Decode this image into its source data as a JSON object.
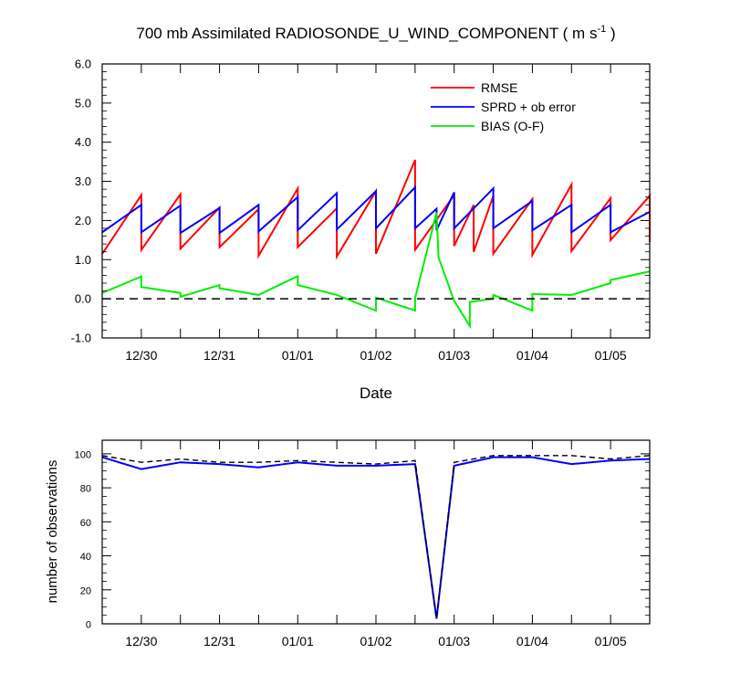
{
  "chart_data": [
    {
      "type": "line",
      "title": "700 mb Assimilated RADIOSONDE_U_WIND_COMPONENT ( m s",
      "title_sup": "-1",
      "title_end": " )",
      "xlabel": "Date",
      "ylabel": "",
      "ylim": [
        -1.0,
        6.0
      ],
      "xlim": [
        0,
        14
      ],
      "yticks": [
        -1.0,
        0.0,
        1.0,
        2.0,
        3.0,
        4.0,
        5.0,
        6.0
      ],
      "ytick_labels": [
        "-1.0",
        "0.0",
        "1.0",
        "2.0",
        "3.0",
        "4.0",
        "5.0",
        "6.0"
      ],
      "xticks": [
        1,
        3,
        5,
        7,
        9,
        11,
        13
      ],
      "xtick_labels": [
        "12/30",
        "12/31",
        "01/01",
        "01/02",
        "01/03",
        "01/04",
        "01/05"
      ],
      "grid": false,
      "zero_line": "dashed",
      "legend_position": "top-right",
      "colors": {
        "rmse": "#ff0000",
        "sprd": "#0000ff",
        "bias": "#00ee00"
      },
      "series": [
        {
          "name": "RMSE",
          "color": "#ff0000",
          "x": [
            0,
            1,
            1,
            2,
            2,
            3,
            3,
            4,
            4,
            5,
            5,
            6,
            6,
            7,
            7,
            8,
            8,
            9,
            9,
            9.5,
            9.5,
            10,
            10,
            11,
            11,
            12,
            12,
            13,
            13,
            14,
            14
          ],
          "y": [
            1.15,
            2.65,
            1.25,
            2.67,
            1.28,
            2.33,
            1.32,
            2.29,
            1.1,
            2.82,
            1.32,
            2.31,
            1.08,
            2.75,
            1.15,
            3.55,
            1.25,
            2.65,
            1.35,
            2.4,
            1.2,
            2.63,
            1.15,
            2.55,
            1.12,
            2.92,
            1.22,
            2.57,
            1.5,
            2.63,
            1.45
          ]
        },
        {
          "name": "SPRD + ob error",
          "color": "#0000ff",
          "x": [
            0,
            1,
            1,
            2,
            2,
            3,
            3,
            4,
            4,
            5,
            5,
            6,
            6,
            7,
            7,
            8,
            8,
            8.55,
            8.55,
            9,
            9,
            10,
            10,
            11,
            11,
            12,
            12,
            13,
            13,
            14
          ],
          "y": [
            1.7,
            2.4,
            1.7,
            2.38,
            1.68,
            2.32,
            1.68,
            2.4,
            1.72,
            2.6,
            1.75,
            2.7,
            1.77,
            2.75,
            1.8,
            2.85,
            1.8,
            2.3,
            1.75,
            2.72,
            1.8,
            2.82,
            1.8,
            2.5,
            1.75,
            2.4,
            1.7,
            2.4,
            1.7,
            2.22
          ]
        },
        {
          "name": "BIAS (O-F)",
          "color": "#00ee00",
          "x": [
            0,
            1,
            1,
            2,
            2,
            3,
            3,
            4,
            4,
            5,
            5,
            6,
            7,
            7,
            8,
            8,
            8.55,
            8.6,
            9,
            9.4,
            9.4,
            10,
            10,
            11,
            11,
            12,
            12,
            13,
            13,
            14
          ],
          "y": [
            0.15,
            0.57,
            0.3,
            0.15,
            0.05,
            0.35,
            0.27,
            0.1,
            0.1,
            0.58,
            0.35,
            0.1,
            -0.3,
            0.03,
            -0.3,
            0.02,
            2.2,
            1.05,
            -0.05,
            -0.7,
            -0.08,
            0.0,
            0.1,
            -0.3,
            0.12,
            0.1,
            0.1,
            0.4,
            0.48,
            0.7
          ]
        }
      ]
    },
    {
      "type": "line",
      "title": "",
      "xlabel": "",
      "ylabel": "number of observations",
      "ylim": [
        0,
        108
      ],
      "xlim": [
        0,
        14
      ],
      "yticks": [
        0,
        20,
        40,
        60,
        80,
        100
      ],
      "ytick_labels": [
        "0",
        "20",
        "40",
        "60",
        "80",
        "100"
      ],
      "xticks": [
        1,
        3,
        5,
        7,
        9,
        11,
        13
      ],
      "xtick_labels": [
        "12/30",
        "12/31",
        "01/01",
        "01/02",
        "01/03",
        "01/04",
        "01/05"
      ],
      "grid": false,
      "colors": {
        "used": "#0000ff",
        "possible": "#000000"
      },
      "series": [
        {
          "color": "#0000ff",
          "style": "solid",
          "x": [
            0,
            1,
            2,
            3,
            4,
            5,
            6,
            7,
            8,
            8.55,
            9,
            10,
            11,
            12,
            13,
            14
          ],
          "y": [
            98,
            91,
            95,
            94,
            92,
            95,
            93,
            93,
            94,
            3,
            93,
            98,
            98,
            94,
            96,
            97
          ]
        },
        {
          "color": "#000000",
          "style": "dashed",
          "x": [
            0,
            1,
            2,
            3,
            4,
            5,
            6,
            7,
            8,
            8.55,
            9,
            10,
            11,
            12,
            13,
            14
          ],
          "y": [
            99,
            95,
            97,
            95,
            95,
            96,
            95,
            94,
            96,
            3,
            95,
            99,
            99,
            99,
            97,
            99
          ]
        }
      ]
    }
  ]
}
